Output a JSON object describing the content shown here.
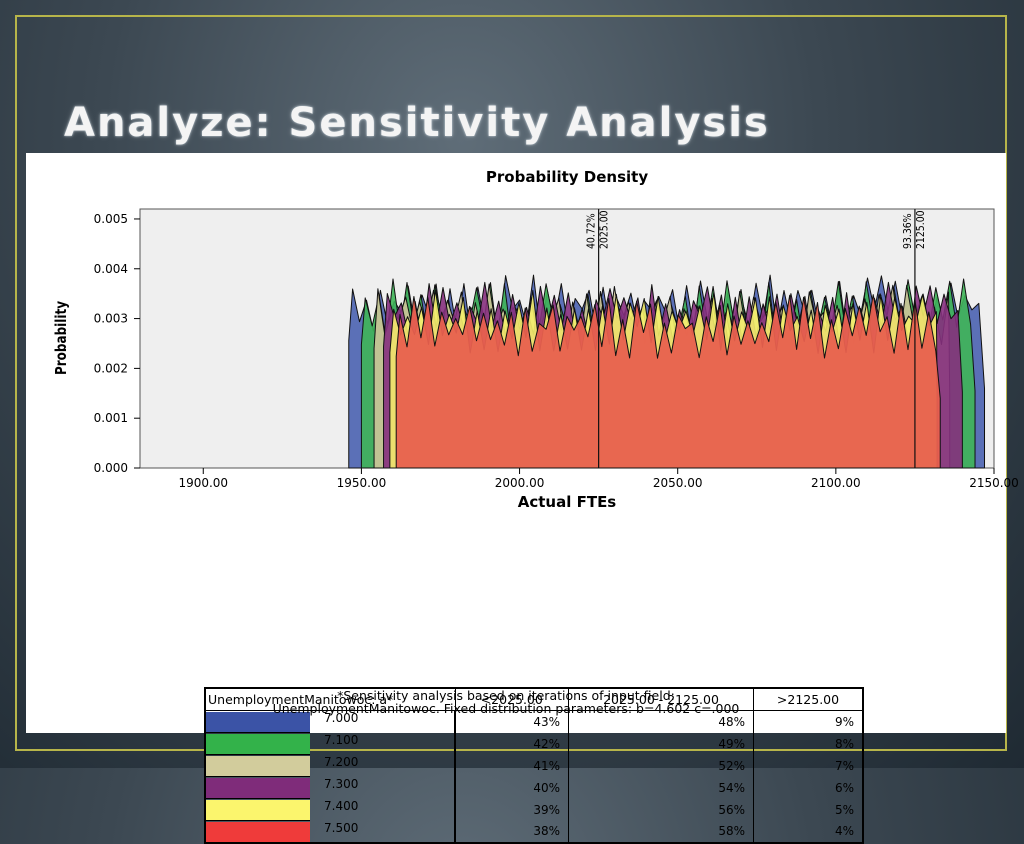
{
  "slide": {
    "title": "Analyze: Sensitivity Analysis"
  },
  "colors": {
    "accent_border": "#b7b54a",
    "plot_bg": "#efefef"
  },
  "chart_data": {
    "type": "area",
    "title": "Probability Density",
    "xlabel": "Actual FTEs",
    "ylabel": "Probability",
    "xlim": [
      1880,
      2150
    ],
    "ylim": [
      0,
      0.0052
    ],
    "x_ticks": [
      "1900.00",
      "1950.00",
      "2000.00",
      "2050.00",
      "2100.00",
      "2150.00"
    ],
    "x_tick_values": [
      1900,
      1950,
      2000,
      2050,
      2100,
      2150
    ],
    "y_ticks": [
      "0.000",
      "0.001",
      "0.002",
      "0.003",
      "0.004",
      "0.005"
    ],
    "y_tick_values": [
      0,
      0.001,
      0.002,
      0.003,
      0.004,
      0.005
    ],
    "reference_lines": [
      {
        "x": 2025,
        "pct_label": "40.72%",
        "value_label": "2025.00"
      },
      {
        "x": 2125,
        "pct_label": "93.36%",
        "value_label": "2125.00"
      }
    ],
    "series": [
      {
        "name": "7.000",
        "color": "#4a62b0",
        "x_start": 1946,
        "x_end": 2147,
        "mean": 0.0032
      },
      {
        "name": "7.100",
        "color": "#3fb558",
        "x_start": 1950,
        "x_end": 2144,
        "mean": 0.0031
      },
      {
        "name": "7.200",
        "color": "#cfc59a",
        "x_start": 1954,
        "x_end": 2136,
        "mean": 0.003
      },
      {
        "name": "7.300",
        "color": "#86307e",
        "x_start": 1957,
        "x_end": 2140,
        "mean": 0.00305
      },
      {
        "name": "7.400",
        "color": "#f5f06c",
        "x_start": 1959,
        "x_end": 2132,
        "mean": 0.0029
      },
      {
        "name": "7.500",
        "color": "#e8604e",
        "x_start": 1961,
        "x_end": 2133,
        "mean": 0.0028
      }
    ]
  },
  "table": {
    "headers": [
      "UnemploymentManitowoc: a*",
      "<2025.00",
      "2025.00 - 2125.00",
      ">2125.00"
    ],
    "rows": [
      {
        "level": "7.000",
        "color": "#3b53a6",
        "c1": "43%",
        "c2": "48%",
        "c3": "9%"
      },
      {
        "level": "7.100",
        "color": "#33b24a",
        "c1": "42%",
        "c2": "49%",
        "c3": "8%"
      },
      {
        "level": "7.200",
        "color": "#d2cc9c",
        "c1": "41%",
        "c2": "52%",
        "c3": "7%"
      },
      {
        "level": "7.300",
        "color": "#7f2c7a",
        "c1": "40%",
        "c2": "54%",
        "c3": "6%"
      },
      {
        "level": "7.400",
        "color": "#fbf56d",
        "c1": "39%",
        "c2": "56%",
        "c3": "5%"
      },
      {
        "level": "7.500",
        "color": "#ef3b3a",
        "c1": "38%",
        "c2": "58%",
        "c3": "4%"
      }
    ],
    "footnote_line1": "*Sensitivity analysis based on iterations of input field:",
    "footnote_line2": "UnemploymentManitowoc. Fixed distribution parameters: b=4.602 c=.000"
  }
}
